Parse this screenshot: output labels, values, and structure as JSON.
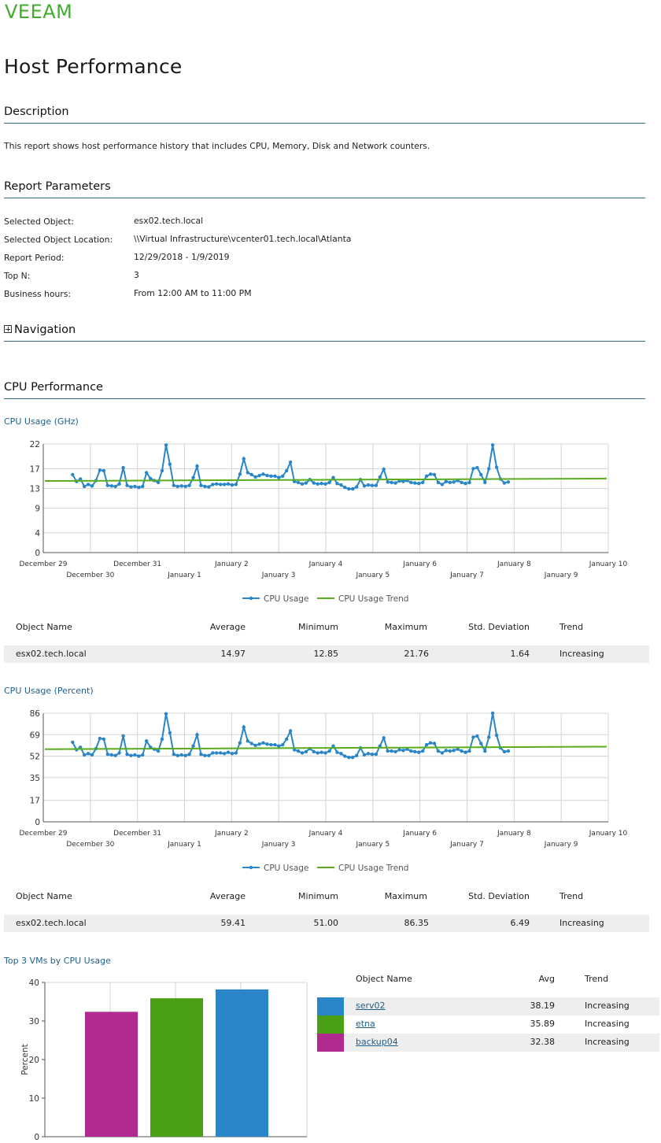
{
  "brand": {
    "logo_text": "VEEAM",
    "color": "#3fae2a"
  },
  "report": {
    "title": "Host Performance"
  },
  "sections": {
    "description": "Description",
    "parameters": "Report Parameters",
    "navigation": "Navigation",
    "cpu": "CPU Performance"
  },
  "description_text": "This report shows host performance history that includes CPU, Memory, Disk and Network counters.",
  "parameters": [
    {
      "label": "Selected Object:",
      "value": "esx02.tech.local"
    },
    {
      "label": "Selected Object Location:",
      "value": "\\\\Virtual Infrastructure\\vcenter01.tech.local\\Atlanta"
    },
    {
      "label": "Report Period:",
      "value": "12/29/2018 - 1/9/2019"
    },
    {
      "label": "Top N:",
      "value": "3"
    },
    {
      "label": "Business hours:",
      "value": "From 12:00 AM to 11:00 PM"
    }
  ],
  "colors": {
    "usage": "#2a86c8",
    "trend": "#5aab1e",
    "grid": "#d4d4d4",
    "axis": "#555555"
  },
  "chart_data": [
    {
      "type": "line",
      "title": "CPU Usage (GHz)",
      "yticks": [
        "0",
        "4",
        "9",
        "13",
        "17",
        "22"
      ],
      "ylim": [
        0,
        22
      ],
      "x_range": [
        "2018-12-29",
        "2019-01-10"
      ],
      "xticks_top": [
        "December 29",
        "December 31",
        "January 2",
        "January 4",
        "January 6",
        "January 8",
        "January 10"
      ],
      "xticks_bottom": [
        "December 30",
        "January 1",
        "January 3",
        "January 5",
        "January 7",
        "January 9"
      ],
      "legend": [
        "CPU Usage",
        "CPU Usage Trend"
      ],
      "grid": true,
      "series": [
        {
          "name": "CPU Usage",
          "values": [
            15.8,
            14.4,
            14.9,
            13.4,
            13.8,
            13.5,
            14.6,
            16.7,
            16.6,
            13.6,
            13.5,
            13.4,
            13.9,
            17.2,
            13.6,
            13.3,
            13.4,
            13.2,
            13.4,
            16.2,
            15.0,
            14.6,
            14.2,
            16.6,
            21.8,
            17.9,
            13.6,
            13.4,
            13.5,
            13.4,
            13.6,
            15.2,
            17.5,
            13.6,
            13.4,
            13.3,
            13.8,
            13.9,
            13.8,
            13.8,
            13.9,
            13.7,
            13.8,
            15.9,
            19.0,
            16.2,
            15.8,
            15.3,
            15.6,
            15.9,
            15.6,
            15.5,
            15.5,
            15.2,
            15.5,
            16.6,
            18.3,
            14.4,
            14.2,
            13.9,
            14.1,
            14.8,
            14.1,
            13.9,
            14.0,
            13.9,
            14.2,
            15.2,
            14.0,
            13.7,
            13.2,
            12.9,
            12.9,
            13.3,
            14.8,
            13.5,
            13.7,
            13.6,
            13.6,
            15.3,
            16.9,
            14.3,
            14.2,
            14.1,
            14.5,
            14.4,
            14.6,
            14.2,
            14.1,
            14.0,
            14.2,
            15.5,
            15.9,
            15.8,
            14.2,
            13.8,
            14.4,
            14.2,
            14.3,
            14.6,
            14.2,
            14.0,
            14.2,
            17.0,
            17.2,
            15.8,
            14.2,
            17.0,
            21.8,
            17.3,
            14.9,
            14.1,
            14.3
          ]
        },
        {
          "name": "CPU Usage Trend",
          "values": [
            14.5,
            15.0
          ]
        }
      ]
    },
    {
      "type": "line",
      "title": "CPU Usage (Percent)",
      "yticks": [
        "0",
        "17",
        "35",
        "52",
        "69",
        "86"
      ],
      "ylim": [
        0,
        86
      ],
      "x_range": [
        "2018-12-29",
        "2019-01-10"
      ],
      "xticks_top": [
        "December 29",
        "December 31",
        "January 2",
        "January 4",
        "January 6",
        "January 8",
        "January 10"
      ],
      "xticks_bottom": [
        "December 30",
        "January 1",
        "January 3",
        "January 5",
        "January 7",
        "January 9"
      ],
      "legend": [
        "CPU Usage",
        "CPU Usage Trend"
      ],
      "grid": true,
      "series": [
        {
          "name": "CPU Usage",
          "values": [
            63.0,
            57.0,
            59.0,
            53.0,
            54.0,
            53.0,
            58.0,
            66.0,
            65.5,
            53.5,
            53.0,
            52.5,
            54.5,
            68.0,
            53.5,
            52.5,
            53.0,
            52.0,
            53.0,
            64.0,
            59.0,
            57.5,
            56.0,
            65.5,
            85.5,
            70.5,
            53.5,
            52.5,
            53.0,
            52.5,
            53.5,
            60.0,
            69.0,
            53.5,
            52.5,
            52.5,
            54.5,
            54.5,
            54.5,
            54.0,
            55.0,
            54.0,
            54.5,
            62.5,
            75.0,
            64.0,
            62.0,
            60.5,
            61.5,
            62.5,
            61.5,
            61.0,
            61.0,
            60.0,
            61.0,
            65.5,
            72.0,
            57.0,
            56.0,
            54.5,
            55.5,
            58.0,
            55.5,
            54.5,
            55.0,
            54.5,
            56.0,
            60.0,
            55.0,
            54.0,
            52.0,
            51.0,
            51.0,
            52.5,
            58.5,
            53.0,
            54.0,
            53.5,
            53.5,
            60.0,
            66.5,
            56.0,
            56.0,
            55.5,
            57.0,
            56.5,
            57.5,
            56.0,
            55.5,
            55.0,
            56.0,
            61.0,
            62.5,
            62.0,
            56.0,
            54.5,
            56.5,
            56.0,
            56.5,
            57.5,
            56.0,
            55.0,
            56.0,
            67.0,
            68.0,
            62.0,
            56.0,
            67.0,
            86.0,
            68.5,
            58.5,
            55.5,
            56.0
          ]
        },
        {
          "name": "CPU Usage Trend",
          "values": [
            57.5,
            59.5
          ]
        }
      ]
    },
    {
      "type": "bar",
      "title": "Top 3 VMs by CPU Usage",
      "categories": [
        "backup04",
        "etna",
        "serv02"
      ],
      "values": [
        32.38,
        35.89,
        38.19
      ],
      "ylabel": "Percent",
      "ylim": [
        0,
        40
      ],
      "yticks": [
        "0",
        "10",
        "20",
        "30",
        "40"
      ],
      "colors": [
        "#b02a8f",
        "#4aa014",
        "#2a86c8"
      ]
    }
  ],
  "stats_columns": [
    "Object Name",
    "Average",
    "Minimum",
    "Maximum",
    "Std. Deviation",
    "Trend"
  ],
  "ghz_stats": {
    "name": "esx02.tech.local",
    "avg": "14.97",
    "min": "12.85",
    "max": "21.76",
    "std": "1.64",
    "trend": "Increasing"
  },
  "pct_stats": {
    "name": "esx02.tech.local",
    "avg": "59.41",
    "min": "51.00",
    "max": "86.35",
    "std": "6.49",
    "trend": "Increasing"
  },
  "top_vms": {
    "columns": [
      "Object Name",
      "Avg",
      "Trend"
    ],
    "rows": [
      {
        "name": "serv02",
        "avg": "38.19",
        "trend": "Increasing",
        "color": "#2a86c8"
      },
      {
        "name": "etna",
        "avg": "35.89",
        "trend": "Increasing",
        "color": "#4aa014"
      },
      {
        "name": "backup04",
        "avg": "32.38",
        "trend": "Increasing",
        "color": "#b02a8f"
      }
    ]
  }
}
